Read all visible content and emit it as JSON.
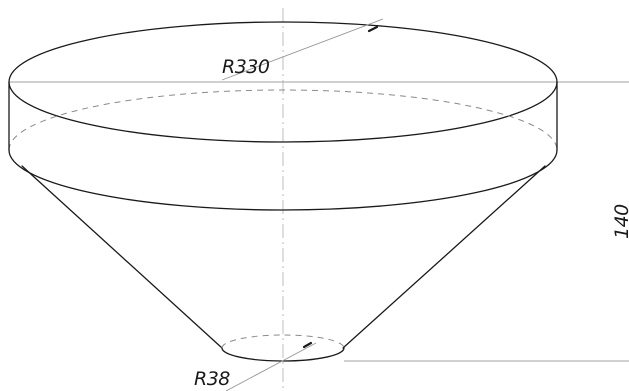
{
  "dimensions": {
    "top_radius": "R330",
    "bottom_radius": "R38",
    "height": "140"
  }
}
